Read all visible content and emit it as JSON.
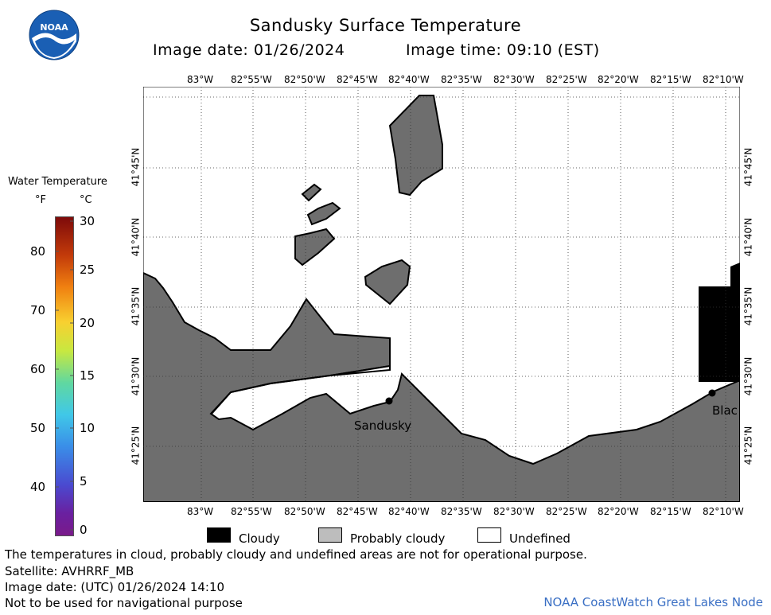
{
  "header": {
    "title": "Sandusky Surface Temperature",
    "image_date_label": "Image date: 01/26/2024",
    "image_time_label": "Image time: 09:10 (EST)"
  },
  "logo": {
    "text": "NOAA",
    "colors": {
      "outer": "#1a5fb4",
      "inner": "#ffffff",
      "bird": "#1a5fb4"
    }
  },
  "colorbar": {
    "title": "Water Temperature",
    "unit_f": "°F",
    "unit_c": "°C",
    "f_ticks": [
      "80",
      "70",
      "60",
      "50",
      "40"
    ],
    "c_ticks": [
      "30",
      "25",
      "20",
      "15",
      "10",
      "5",
      "0"
    ],
    "gradient_colors": [
      "#7d0a0a",
      "#c23a0a",
      "#f08010",
      "#f8d030",
      "#c8e840",
      "#60d8a0",
      "#40c8e8",
      "#3a8ee8",
      "#4a4ad0",
      "#6a20a0",
      "#7a1a8a"
    ]
  },
  "map": {
    "top_lon_labels": [
      "83°W",
      "82°55'W",
      "82°50'W",
      "82°45'W",
      "82°40'W",
      "82°35'W",
      "82°30'W",
      "82°25'W",
      "82°20'W",
      "82°15'W",
      "82°10'W"
    ],
    "bottom_lon_labels": [
      "83°W",
      "82°55'W",
      "82°50'W",
      "82°45'W",
      "82°40'W",
      "82°35'W",
      "82°30'W",
      "82°25'W",
      "82°20'W",
      "82°15'W",
      "82°10'W"
    ],
    "lat_labels": [
      "41°45'N",
      "41°40'N",
      "41°35'N",
      "41°30'N",
      "41°25'N"
    ],
    "place_labels": {
      "sandusky": "Sandusky",
      "blac": "Blac"
    },
    "colors": {
      "land": "#6e6e6e",
      "water": "#ffffff",
      "cloudy": "#000000",
      "coast": "#000000"
    }
  },
  "legend": {
    "cloudy": "Cloudy",
    "probably_cloudy": "Probably cloudy",
    "undefined": "Undefined",
    "colors": {
      "cloudy": "#000000",
      "probably_cloudy": "#bdbdbd",
      "undefined": "#ffffff"
    }
  },
  "footer": {
    "line1": "The temperatures in cloud, probably cloudy and undefined areas are not for operational purpose.",
    "line2": "Satellite: AVHRRF_MB",
    "line3": "Image date: (UTC) 01/26/2024  14:10",
    "line4": "Not to be used for navigational purpose",
    "credit": "NOAA CoastWatch Great Lakes Node"
  }
}
